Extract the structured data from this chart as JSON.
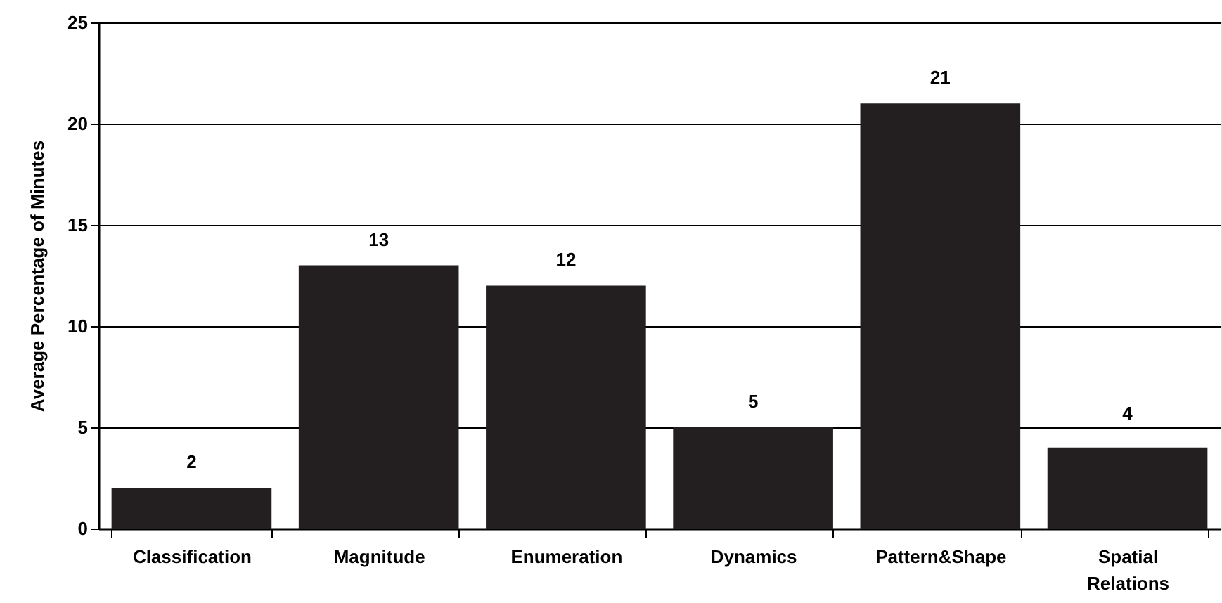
{
  "chart_data": {
    "type": "bar",
    "ylabel": "Average Percentage of Minutes",
    "categories": [
      "Classification",
      "Magnitude",
      "Enumeration",
      "Dynamics",
      "Pattern&Shape",
      "Spatial Relations"
    ],
    "values": [
      2,
      13,
      12,
      5,
      21,
      4
    ],
    "color": "#231f20",
    "ylim": [
      0,
      25
    ],
    "yticks": [
      0,
      5,
      10,
      15,
      20,
      25
    ],
    "grid": "y",
    "data_labels": true
  }
}
